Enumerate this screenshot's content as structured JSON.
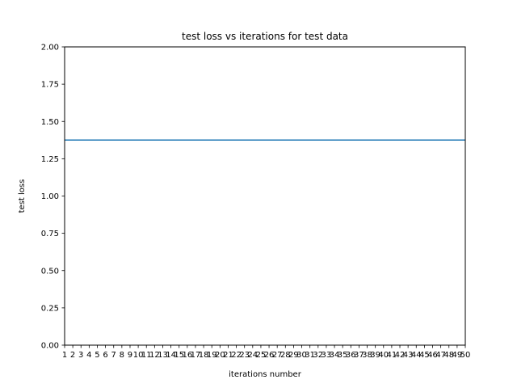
{
  "chart_data": {
    "type": "line",
    "title": "test loss vs iterations for test data",
    "xlabel": "iterations number",
    "ylabel": "test loss",
    "x": [
      1,
      2,
      3,
      4,
      5,
      6,
      7,
      8,
      9,
      10,
      11,
      12,
      13,
      14,
      15,
      16,
      17,
      18,
      19,
      20,
      21,
      22,
      23,
      24,
      25,
      26,
      27,
      28,
      29,
      30,
      31,
      32,
      33,
      34,
      35,
      36,
      37,
      38,
      39,
      40,
      41,
      42,
      43,
      44,
      45,
      46,
      47,
      48,
      49,
      50
    ],
    "xticks": [
      "1",
      "2",
      "3",
      "4",
      "5",
      "6",
      "7",
      "8",
      "9",
      "10",
      "11",
      "12",
      "13",
      "14",
      "15",
      "16",
      "17",
      "18",
      "19",
      "20",
      "21",
      "22",
      "23",
      "24",
      "25",
      "26",
      "27",
      "28",
      "29",
      "30",
      "31",
      "32",
      "33",
      "34",
      "35",
      "36",
      "37",
      "38",
      "39",
      "40",
      "41",
      "42",
      "43",
      "44",
      "45",
      "46",
      "47",
      "48",
      "49",
      "50"
    ],
    "yticks": [
      "0.00",
      "0.25",
      "0.50",
      "0.75",
      "1.00",
      "1.25",
      "1.50",
      "1.75",
      "2.00"
    ],
    "ylim": [
      0,
      2
    ],
    "xlim": [
      1,
      50
    ],
    "grid": false,
    "series": [
      {
        "color": "#1f77b4",
        "values": [
          1.375,
          1.375,
          1.375,
          1.375,
          1.375,
          1.375,
          1.375,
          1.375,
          1.375,
          1.375,
          1.375,
          1.375,
          1.375,
          1.375,
          1.375,
          1.375,
          1.375,
          1.375,
          1.375,
          1.375,
          1.375,
          1.375,
          1.375,
          1.375,
          1.375,
          1.375,
          1.375,
          1.375,
          1.375,
          1.375,
          1.375,
          1.375,
          1.375,
          1.375,
          1.375,
          1.375,
          1.375,
          1.375,
          1.375,
          1.375,
          1.375,
          1.375,
          1.375,
          1.375,
          1.375,
          1.375,
          1.375,
          1.375,
          1.375,
          1.375
        ]
      }
    ]
  }
}
